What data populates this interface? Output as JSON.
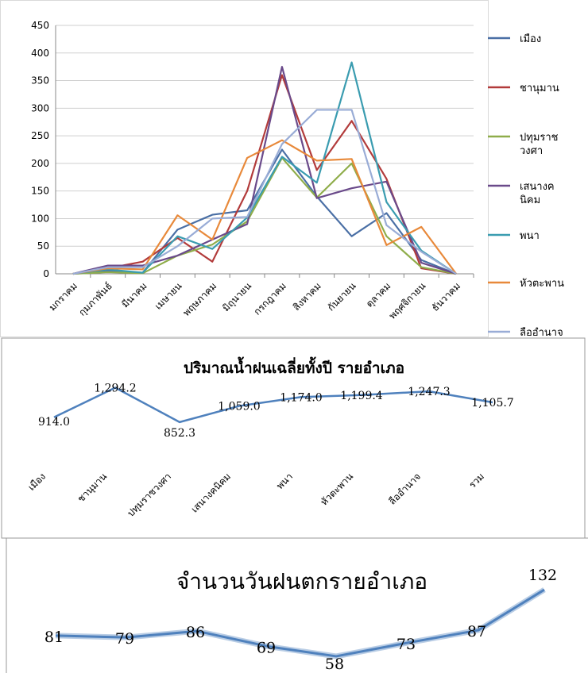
{
  "chart_data": [
    {
      "type": "line",
      "categories": [
        "มกราคม",
        "กุมภาพันธ์",
        "มีนาคม",
        "เมษายน",
        "พฤษภาคม",
        "มิถุนายน",
        "กรกฎาคม",
        "สิงหาคม",
        "กันยายน",
        "ตุลาคม",
        "พฤศจิกายน",
        "ธันวาคม"
      ],
      "yticks": [
        "0",
        "50",
        "100",
        "150",
        "200",
        "250",
        "300",
        "350",
        "400",
        "450"
      ],
      "ylim": [
        0,
        450
      ],
      "grid": true,
      "legend": "right",
      "series": [
        {
          "name": "เมือง",
          "color": "#4a6fa5",
          "values": [
            0,
            5,
            2,
            80,
            107,
            115,
            225,
            140,
            68,
            110,
            25,
            0
          ]
        },
        {
          "name": "ชานุมาน",
          "color": "#b23b3b",
          "values": [
            0,
            10,
            22,
            65,
            22,
            150,
            360,
            188,
            277,
            172,
            10,
            0
          ]
        },
        {
          "name": "ปทุมราชวงศา",
          "color": "#8fad4a",
          "values": [
            0,
            3,
            1,
            33,
            53,
            95,
            210,
            138,
            200,
            68,
            12,
            0
          ]
        },
        {
          "name": "เสนางคนิคม",
          "color": "#6a4a8a",
          "values": [
            0,
            15,
            15,
            33,
            62,
            90,
            375,
            137,
            155,
            167,
            20,
            0
          ]
        },
        {
          "name": "พนา",
          "color": "#3a9cb0",
          "values": [
            0,
            8,
            2,
            68,
            45,
            102,
            212,
            165,
            383,
            130,
            42,
            0
          ]
        },
        {
          "name": "หัวตะพาน",
          "color": "#e8893a",
          "values": [
            0,
            10,
            8,
            106,
            62,
            210,
            242,
            205,
            208,
            52,
            85,
            0
          ]
        },
        {
          "name": "ลืออำนาจ",
          "color": "#99acd6",
          "values": [
            0,
            12,
            12,
            50,
            100,
            103,
            235,
            297,
            297,
            88,
            40,
            0
          ]
        }
      ],
      "legend_lines": [
        [
          "เมือง"
        ],
        [
          "ชานุมาน"
        ],
        [
          "ปทุมราช",
          "วงศา"
        ],
        [
          "เสนางค",
          "นิคม"
        ],
        [
          "พนา"
        ],
        [
          "หัวตะพาน"
        ],
        [
          "ลืออำนาจ"
        ]
      ]
    },
    {
      "type": "line",
      "title": "ปริมาณน้ำฝนเฉลี่ยทั้งปี รายอำเภอ",
      "categories": [
        "เมือง",
        "ชานุมาน",
        "ปทุมราชวงศา",
        "เสนางคนิคม",
        "พนา",
        "หัวตะพาน",
        "ลืออำนาจ",
        "รวม"
      ],
      "values": [
        914.0,
        1294.2,
        852.3,
        1059.0,
        1174.0,
        1199.4,
        1247.3,
        1105.7
      ],
      "data_labels": [
        "914.0",
        "1,294.2",
        "852.3",
        "1,059.0",
        "1,174.0",
        "1,199.4",
        "1,247.3",
        "1,105.7"
      ],
      "color": "#4f81bd"
    },
    {
      "type": "line",
      "title": "จำนวนวันฝนตกรายอำเภอ",
      "values": [
        81,
        79,
        86,
        69,
        58,
        73,
        87,
        132
      ],
      "data_labels": [
        "81",
        "79",
        "86",
        "69",
        "58",
        "73",
        "87",
        "132"
      ],
      "color": "#4f81bd"
    }
  ]
}
